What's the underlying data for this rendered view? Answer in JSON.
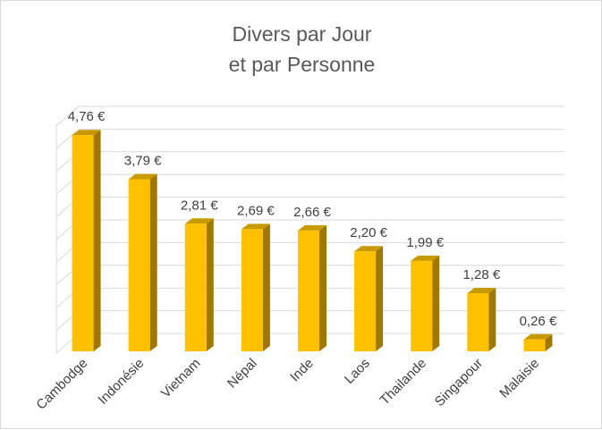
{
  "chart_data": {
    "type": "bar",
    "title_lines": [
      "Divers par Jour",
      "et par Personne"
    ],
    "categories": [
      "Cambodge",
      "Indonésie",
      "Vietnam",
      "Népal",
      "Inde",
      "Laos",
      "Thailande",
      "Singapour",
      "Malaisie"
    ],
    "values": [
      4.76,
      3.79,
      2.81,
      2.69,
      2.66,
      2.2,
      1.99,
      1.28,
      0.26
    ],
    "value_labels": [
      "4,76 €",
      "3,79 €",
      "2,81 €",
      "2,69 €",
      "2,66 €",
      "2,20 €",
      "1,99 €",
      "1,28 €",
      "0,26 €"
    ],
    "ylim": [
      0,
      5
    ],
    "grid": true,
    "legend": "none",
    "style": "3d-column",
    "colors": {
      "bar_front": "#ffc000",
      "bar_side": "#a07800",
      "bar_top": "#c89a00",
      "grid": "#d9d9d9",
      "text": "#404040",
      "title": "#595959"
    }
  }
}
